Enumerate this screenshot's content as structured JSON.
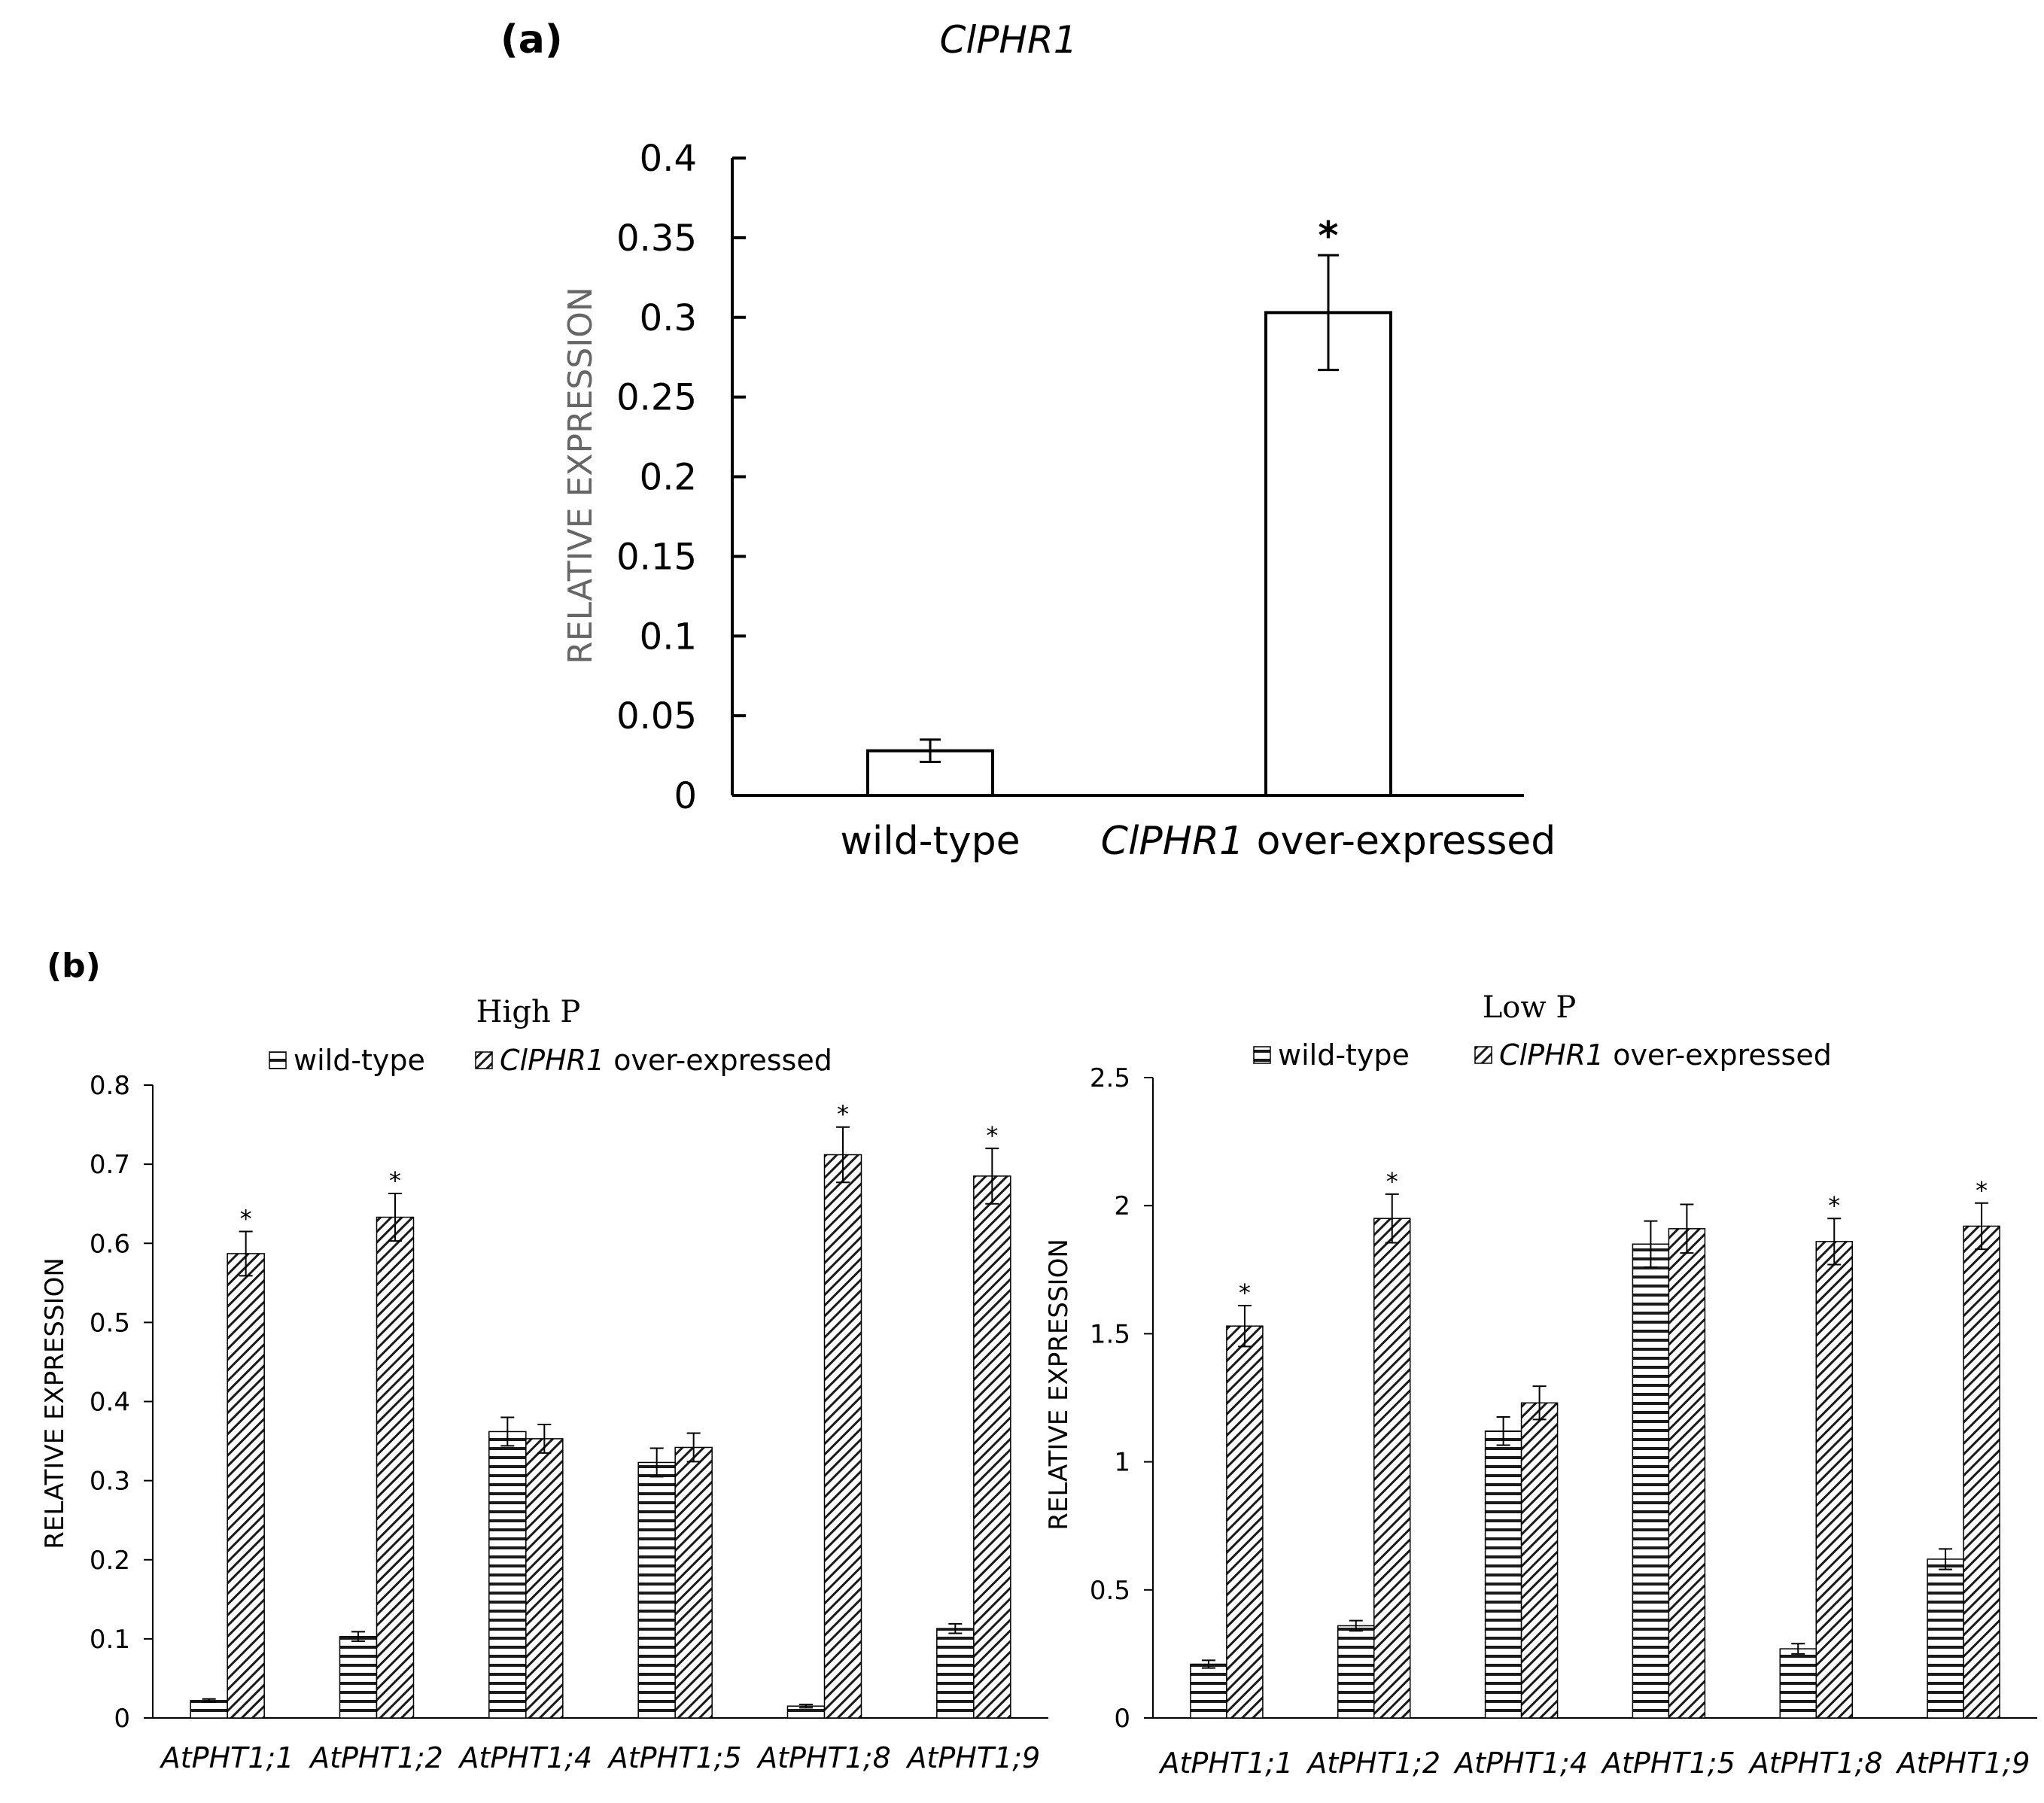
{
  "panel_a_label": "(a)",
  "panel_b_label": "(b)",
  "chart_data": [
    {
      "type": "bar",
      "title": "ClPHR1",
      "ylabel": "RELATIVE EXPRESSION",
      "ylim": [
        0,
        0.4
      ],
      "yticks": [
        "0",
        "0.05",
        "0.1",
        "0.15",
        "0.2",
        "0.25",
        "0.3",
        "0.35",
        "0.4"
      ],
      "categories": [
        {
          "italic": "",
          "rest": "wild-type"
        },
        {
          "italic": "ClPHR1",
          "rest": " over-expressed"
        }
      ],
      "values": [
        0.028,
        0.303
      ],
      "errors": [
        0.007,
        0.036
      ],
      "significance": [
        "",
        "*"
      ]
    },
    {
      "type": "bar",
      "title": "High P",
      "ylabel": "RELATIVE EXPRESSION",
      "ylim": [
        0,
        0.8
      ],
      "yticks": [
        "0",
        "0.1",
        "0.2",
        "0.3",
        "0.4",
        "0.5",
        "0.6",
        "0.7",
        "0.8"
      ],
      "categories": [
        "AtPHT1;1",
        "AtPHT1;2",
        "AtPHT1;4",
        "AtPHT1;5",
        "AtPHT1;8",
        "AtPHT1;9"
      ],
      "legend": [
        {
          "italic": "",
          "rest": "wild-type",
          "pattern": "horizontal-lines"
        },
        {
          "italic": "ClPHR1",
          "rest": " over-expressed",
          "pattern": "diagonal-lines"
        }
      ],
      "legend_position": "top",
      "series": [
        {
          "values": [
            0.022,
            0.103,
            0.362,
            0.323,
            0.015,
            0.113
          ],
          "errors": [
            0.002,
            0.006,
            0.018,
            0.018,
            0.002,
            0.006
          ],
          "significance": [
            "",
            "",
            "",
            "",
            "",
            ""
          ]
        },
        {
          "values": [
            0.587,
            0.633,
            0.353,
            0.342,
            0.712,
            0.685
          ],
          "errors": [
            0.028,
            0.03,
            0.018,
            0.018,
            0.035,
            0.035
          ],
          "significance": [
            "*",
            "*",
            "",
            "",
            "*",
            "*"
          ]
        }
      ]
    },
    {
      "type": "bar",
      "title": "Low P",
      "ylabel": "RELATIVE EXPRESSION",
      "ylim": [
        0,
        2.5
      ],
      "yticks": [
        "0",
        "0.5",
        "1",
        "1.5",
        "2",
        "2.5"
      ],
      "categories": [
        "AtPHT1;1",
        "AtPHT1;2",
        "AtPHT1;4",
        "AtPHT1;5",
        "AtPHT1;8",
        "AtPHT1;9"
      ],
      "legend": [
        {
          "italic": "",
          "rest": "wild-type",
          "pattern": "horizontal-lines"
        },
        {
          "italic": "ClPHR1",
          "rest": " over-expressed",
          "pattern": "diagonal-lines"
        }
      ],
      "legend_position": "top",
      "series": [
        {
          "values": [
            0.21,
            0.36,
            1.12,
            1.85,
            0.27,
            0.62
          ],
          "errors": [
            0.015,
            0.02,
            0.055,
            0.09,
            0.02,
            0.04
          ],
          "significance": [
            "",
            "",
            "",
            "",
            "",
            ""
          ]
        },
        {
          "values": [
            1.53,
            1.95,
            1.23,
            1.91,
            1.86,
            1.92
          ],
          "errors": [
            0.08,
            0.095,
            0.065,
            0.095,
            0.09,
            0.09
          ],
          "significance": [
            "*",
            "*",
            "",
            "",
            "*",
            "*"
          ]
        }
      ]
    }
  ]
}
